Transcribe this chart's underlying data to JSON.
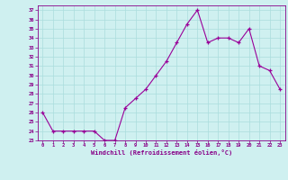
{
  "xlabel": "Windchill (Refroidissement éolien,°C)",
  "x_values": [
    0,
    1,
    2,
    3,
    4,
    5,
    6,
    7,
    8,
    9,
    10,
    11,
    12,
    13,
    14,
    15,
    16,
    17,
    18,
    19,
    20,
    21,
    22,
    23
  ],
  "y_values": [
    26,
    24,
    24,
    24,
    24,
    24,
    23,
    23,
    26.5,
    27.5,
    28.5,
    30,
    31.5,
    33.5,
    35.5,
    37,
    33.5,
    34,
    34,
    33.5,
    35,
    31,
    30.5,
    28.5
  ],
  "line_color": "#990099",
  "marker_color": "#990099",
  "bg_color": "#cff0f0",
  "grid_color": "#aadddd",
  "tick_color": "#880088",
  "label_color": "#880088",
  "ylim_min": 23,
  "ylim_max": 37,
  "xlim_min": -0.5,
  "xlim_max": 23.5
}
